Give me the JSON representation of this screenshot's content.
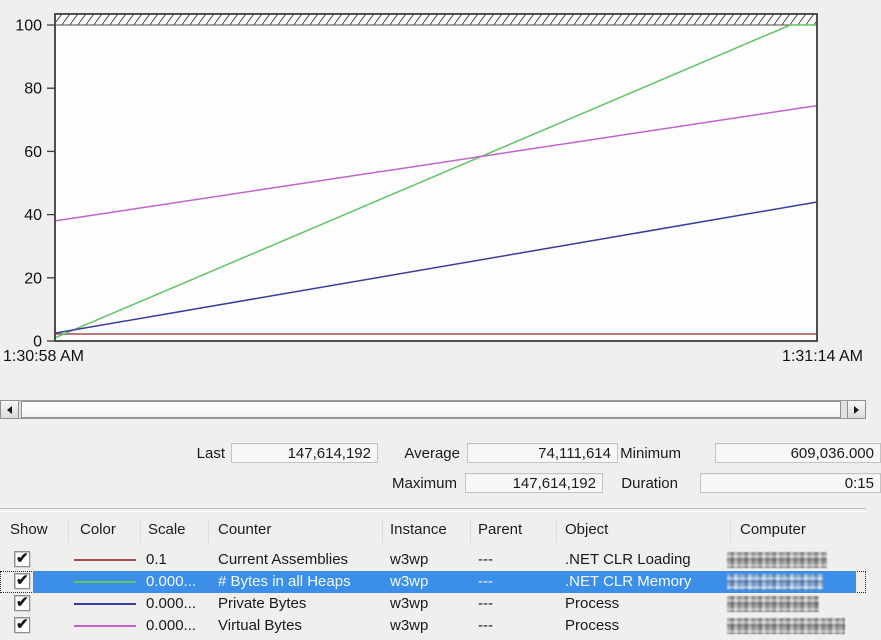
{
  "app": {
    "background": "#f0efed",
    "selection_color": "#3b8fe8"
  },
  "chart_data": {
    "type": "line",
    "title": "",
    "xlabel": "",
    "ylabel": "",
    "ylim": [
      0,
      100
    ],
    "yticks": [
      0,
      20,
      40,
      60,
      80,
      100
    ],
    "x_start_label": "1:30:58 AM",
    "x_end_label": "1:31:14 AM",
    "grid": false,
    "legend_position": "table-below",
    "series": [
      {
        "name": "Current Assemblies",
        "color": "#9e4f4f",
        "points": [
          [
            0,
            2.2
          ],
          [
            1,
            2.2
          ]
        ]
      },
      {
        "name": "# Bytes in all Heaps",
        "color": "#5fc463",
        "points": [
          [
            0,
            1
          ],
          [
            0.965,
            100
          ],
          [
            1,
            100
          ]
        ]
      },
      {
        "name": "Private Bytes",
        "color": "#3c3c9c",
        "points": [
          [
            0,
            2.5
          ],
          [
            1,
            44
          ]
        ]
      },
      {
        "name": "Virtual Bytes",
        "color": "#c064cc",
        "points": [
          [
            0,
            38
          ],
          [
            1,
            74.5
          ]
        ]
      }
    ]
  },
  "scrollbar": {
    "orientation": "horizontal"
  },
  "stats": {
    "last": {
      "label": "Last",
      "value": "147,614,192"
    },
    "average": {
      "label": "Average",
      "value": "74,111,614"
    },
    "minimum": {
      "label": "Minimum",
      "value": "609,036.000"
    },
    "maximum": {
      "label": "Maximum",
      "value": "147,614,192"
    },
    "duration": {
      "label": "Duration",
      "value": "0:15"
    }
  },
  "counter_table": {
    "columns": [
      "Show",
      "Color",
      "Scale",
      "Counter",
      "Instance",
      "Parent",
      "Object",
      "Computer"
    ],
    "rows": [
      {
        "show_checked": true,
        "color": "#9e4f4f",
        "scale": "0.1",
        "counter": "Current Assemblies",
        "instance": "w3wp",
        "parent": "---",
        "object": ".NET CLR Loading",
        "computer_censored": true,
        "selected": false
      },
      {
        "show_checked": true,
        "color": "#5fc463",
        "scale": "0.000...",
        "counter": "# Bytes in all Heaps",
        "instance": "w3wp",
        "parent": "---",
        "object": ".NET CLR Memory",
        "computer_censored": true,
        "selected": true
      },
      {
        "show_checked": true,
        "color": "#3c3c9c",
        "scale": "0.000...",
        "counter": "Private Bytes",
        "instance": "w3wp",
        "parent": "---",
        "object": "Process",
        "computer_censored": true,
        "selected": false
      },
      {
        "show_checked": true,
        "color": "#c064cc",
        "scale": "0.000...",
        "counter": "Virtual Bytes",
        "instance": "w3wp",
        "parent": "---",
        "object": "Process",
        "computer_censored": true,
        "selected": false
      }
    ]
  }
}
